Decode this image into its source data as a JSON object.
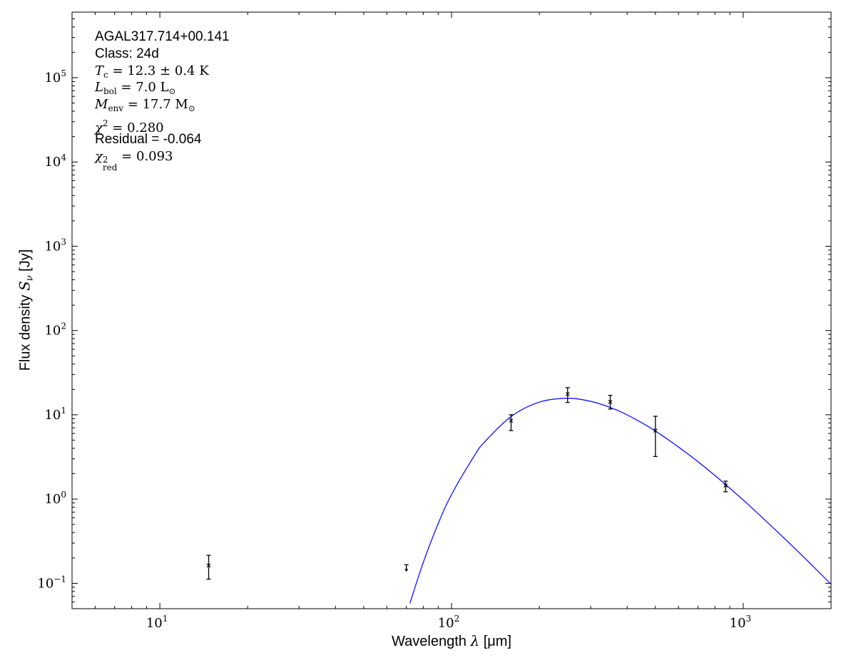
{
  "chart_data": {
    "type": "scatter",
    "title": "",
    "xlabel": {
      "text": "Wavelength",
      "symbol": "λ",
      "unit": "[μm]"
    },
    "ylabel": {
      "text": "Flux density",
      "symbol": "S",
      "symbol_sub": "ν",
      "unit": "[Jy]"
    },
    "xscale": "log",
    "yscale": "log",
    "xlim": [
      5,
      2000
    ],
    "ylim": [
      0.05,
      600000
    ],
    "grid": false,
    "x_ticks": [
      {
        "base": "10",
        "exp": "1",
        "value": 10
      },
      {
        "base": "10",
        "exp": "2",
        "value": 100
      },
      {
        "base": "10",
        "exp": "3",
        "value": 1000
      }
    ],
    "y_ticks": [
      {
        "base": "10",
        "exp": "−1",
        "value": 0.1
      },
      {
        "base": "10",
        "exp": "0",
        "value": 1
      },
      {
        "base": "10",
        "exp": "1",
        "value": 10
      },
      {
        "base": "10",
        "exp": "2",
        "value": 100
      },
      {
        "base": "10",
        "exp": "3",
        "value": 1000
      },
      {
        "base": "10",
        "exp": "4",
        "value": 10000
      },
      {
        "base": "10",
        "exp": "5",
        "value": 100000
      }
    ],
    "points": [
      {
        "x": 14.7,
        "y": 0.163,
        "ylo": 0.112,
        "yhi": 0.215,
        "upper_limit": false
      },
      {
        "x": 70,
        "y": 0.16,
        "upper_limit": true
      },
      {
        "x": 160,
        "y": 8.5,
        "ylo": 6.5,
        "yhi": 10.0,
        "upper_limit": false
      },
      {
        "x": 250,
        "y": 17.6,
        "ylo": 14.0,
        "yhi": 21.0,
        "upper_limit": false
      },
      {
        "x": 350,
        "y": 14.2,
        "ylo": 11.7,
        "yhi": 17.0,
        "upper_limit": false
      },
      {
        "x": 500,
        "y": 6.5,
        "ylo": 3.2,
        "yhi": 9.6,
        "upper_limit": false
      },
      {
        "x": 870,
        "y": 1.45,
        "ylo": 1.22,
        "yhi": 1.63,
        "upper_limit": false
      }
    ],
    "model": {
      "color": "#0000ff",
      "x": [
        72,
        80,
        90,
        100,
        120,
        130,
        160,
        200,
        250,
        300,
        350,
        400,
        500,
        700,
        1000,
        1500,
        2000
      ],
      "y": [
        0.058,
        0.177,
        0.511,
        1.13,
        3.31,
        4.78,
        9.54,
        14.13,
        15.7,
        14.43,
        12.21,
        9.96,
        6.41,
        2.77,
        0.973,
        0.261,
        0.0976
      ]
    },
    "marker_color": "#000000"
  },
  "annotations": {
    "source": "AGAL317.714+00.141",
    "class": "Class: 24d",
    "tc": {
      "sym": "T",
      "sub": "c",
      "rest": " = 12.3 ± 0.4 K"
    },
    "lbol": {
      "sym": "L",
      "sub": "bol",
      "rest": " = 7.0 L",
      "rest_sub": "⊙"
    },
    "menv": {
      "sym": "M",
      "sub": "env",
      "rest": " = 17.7 M",
      "rest_sub": "⊙"
    },
    "chi2": {
      "sym": "χ",
      "sup": "2",
      "rest": " = 0.280"
    },
    "residual": "Residual = -0.064",
    "chi2red": {
      "sym": "χ",
      "sup": "2",
      "sub": "red",
      "rest": " = 0.093"
    }
  }
}
